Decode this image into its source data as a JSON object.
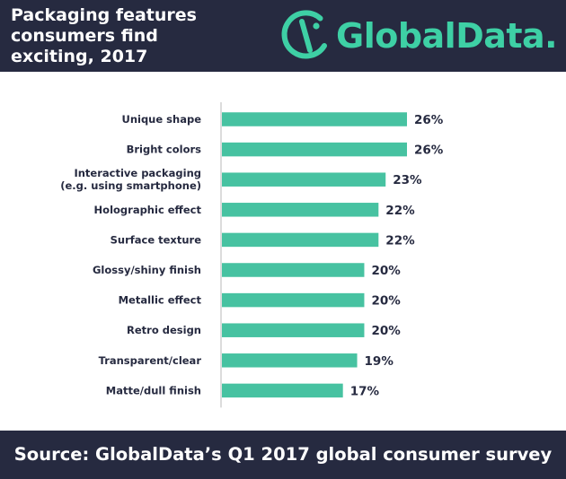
{
  "header": {
    "title_lines": [
      "Packaging features",
      "consumers find",
      "exciting, 2017"
    ],
    "logo_text": "GlobalData."
  },
  "footer": {
    "source": "Source: GlobalData’s Q1 2017 global consumer survey"
  },
  "colors": {
    "header_bg": "#262a40",
    "bar": "#47c2a1",
    "brand": "#3ed0a5",
    "text": "#262a40"
  },
  "chart_data": {
    "type": "bar",
    "orientation": "horizontal",
    "categories": [
      [
        "Unique shape"
      ],
      [
        "Bright colors"
      ],
      [
        "Interactive packaging",
        "(e.g. using smartphone)"
      ],
      [
        "Holographic effect"
      ],
      [
        "Surface texture"
      ],
      [
        "Glossy/shiny finish"
      ],
      [
        "Metallic effect"
      ],
      [
        "Retro design"
      ],
      [
        "Transparent/clear"
      ],
      [
        "Matte/dull finish"
      ]
    ],
    "values": [
      26,
      26,
      23,
      22,
      22,
      20,
      20,
      20,
      19,
      17
    ],
    "value_labels": [
      "26%",
      "26%",
      "23%",
      "22%",
      "22%",
      "20%",
      "20%",
      "20%",
      "19%",
      "17%"
    ],
    "xlim": [
      0,
      26
    ],
    "grid": false,
    "legend": "none"
  }
}
